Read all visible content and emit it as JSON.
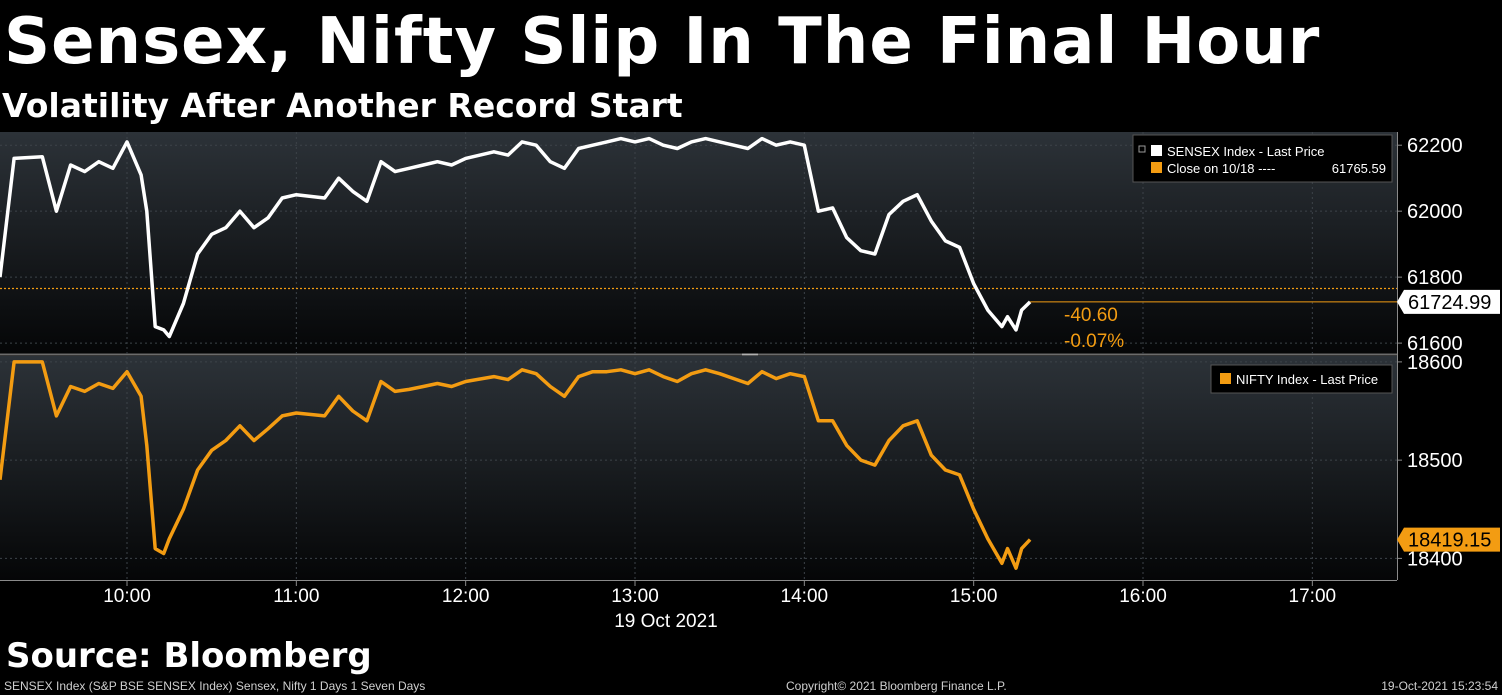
{
  "header": {
    "title": "Sensex, Nifty Slip In The Final Hour",
    "subtitle": "Volatility After Another Record Start"
  },
  "source_label": "Source: Bloomberg",
  "footer": {
    "left": "SENSEX Index (S&P BSE SENSEX Index) Sensex, Nifty 1 Days 1 Seven Days",
    "center": "Copyright© 2021 Bloomberg Finance L.P.",
    "right": "19-Oct-2021 15:23:54"
  },
  "colors": {
    "background": "#000000",
    "sensex_line": "#ffffff",
    "nifty_line": "#f39c12",
    "prev_close_line": "#f39c12"
  },
  "chart_data": {
    "type": "line",
    "date_label": "19 Oct 2021",
    "x_tick_labels": [
      "10:00",
      "11:00",
      "12:00",
      "13:00",
      "14:00",
      "15:00",
      "16:00",
      "17:00"
    ],
    "xlim": [
      "09:15",
      "17:30"
    ],
    "panels": [
      {
        "id": "sensex",
        "legend": [
          "SENSEX Index - Last Price",
          "Close on 10/18 ----"
        ],
        "legend_value": "61765.59",
        "ylim": [
          61570,
          62240
        ],
        "y_ticks": [
          61600,
          61800,
          62000,
          62200
        ],
        "y_tick_labels": [
          "61600",
          "61800",
          "62000",
          "62200"
        ],
        "last_value_label": "61724.99",
        "prev_close": 61765.59,
        "change_label": "-40.60",
        "change_pct_label": "-0.07%",
        "series": [
          {
            "name": "SENSEX Index - Last Price",
            "x": [
              "09:15",
              "09:20",
              "09:30",
              "09:35",
              "09:40",
              "09:45",
              "09:50",
              "09:55",
              "10:00",
              "10:05",
              "10:07",
              "10:10",
              "10:13",
              "10:15",
              "10:20",
              "10:25",
              "10:30",
              "10:35",
              "10:40",
              "10:45",
              "10:50",
              "10:55",
              "11:00",
              "11:10",
              "11:15",
              "11:20",
              "11:25",
              "11:30",
              "11:35",
              "11:40",
              "11:45",
              "11:50",
              "11:55",
              "12:00",
              "12:10",
              "12:15",
              "12:20",
              "12:25",
              "12:30",
              "12:35",
              "12:40",
              "12:45",
              "12:50",
              "12:55",
              "13:00",
              "13:05",
              "13:10",
              "13:15",
              "13:20",
              "13:25",
              "13:30",
              "13:35",
              "13:40",
              "13:45",
              "13:50",
              "13:55",
              "14:00",
              "14:05",
              "14:10",
              "14:15",
              "14:20",
              "14:25",
              "14:30",
              "14:35",
              "14:40",
              "14:45",
              "14:50",
              "14:55",
              "15:00",
              "15:05",
              "15:10",
              "15:12",
              "15:15",
              "15:17",
              "15:20"
            ],
            "values": [
              61800,
              62160,
              62165,
              62000,
              62140,
              62120,
              62150,
              62130,
              62210,
              62110,
              62000,
              61650,
              61640,
              61620,
              61720,
              61870,
              61930,
              61950,
              62000,
              61950,
              61980,
              62040,
              62050,
              62040,
              62100,
              62060,
              62030,
              62150,
              62120,
              62130,
              62140,
              62150,
              62140,
              62160,
              62180,
              62170,
              62210,
              62200,
              62150,
              62130,
              62190,
              62200,
              62210,
              62220,
              62210,
              62220,
              62200,
              62190,
              62210,
              62220,
              62210,
              62200,
              62190,
              62220,
              62200,
              62210,
              62200,
              62000,
              62010,
              61920,
              61880,
              61870,
              61990,
              62030,
              62050,
              61970,
              61910,
              61890,
              61780,
              61700,
              61650,
              61680,
              61640,
              61700,
              61724.99
            ]
          }
        ]
      },
      {
        "id": "nifty",
        "legend": [
          "NIFTY Index - Last Price"
        ],
        "ylim": [
          18378,
          18606
        ],
        "y_ticks": [
          18400,
          18500,
          18600
        ],
        "y_tick_labels": [
          "18400",
          "18500",
          "18600"
        ],
        "last_value_label": "18419.15",
        "series": [
          {
            "name": "NIFTY Index - Last Price",
            "x": [
              "09:15",
              "09:20",
              "09:30",
              "09:35",
              "09:40",
              "09:45",
              "09:50",
              "09:55",
              "10:00",
              "10:05",
              "10:07",
              "10:10",
              "10:13",
              "10:15",
              "10:20",
              "10:25",
              "10:30",
              "10:35",
              "10:40",
              "10:45",
              "10:50",
              "10:55",
              "11:00",
              "11:10",
              "11:15",
              "11:20",
              "11:25",
              "11:30",
              "11:35",
              "11:40",
              "11:45",
              "11:50",
              "11:55",
              "12:00",
              "12:10",
              "12:15",
              "12:20",
              "12:25",
              "12:30",
              "12:35",
              "12:40",
              "12:45",
              "12:50",
              "12:55",
              "13:00",
              "13:05",
              "13:10",
              "13:15",
              "13:20",
              "13:25",
              "13:30",
              "13:35",
              "13:40",
              "13:45",
              "13:50",
              "13:55",
              "14:00",
              "14:05",
              "14:10",
              "14:15",
              "14:20",
              "14:25",
              "14:30",
              "14:35",
              "14:40",
              "14:45",
              "14:50",
              "14:55",
              "15:00",
              "15:05",
              "15:10",
              "15:12",
              "15:15",
              "15:17",
              "15:20"
            ],
            "values": [
              18480,
              18600,
              18600,
              18545,
              18575,
              18570,
              18578,
              18573,
              18590,
              18565,
              18515,
              18410,
              18405,
              18420,
              18450,
              18490,
              18510,
              18520,
              18535,
              18520,
              18532,
              18545,
              18548,
              18545,
              18565,
              18550,
              18540,
              18580,
              18570,
              18572,
              18575,
              18578,
              18575,
              18580,
              18585,
              18582,
              18592,
              18588,
              18575,
              18565,
              18585,
              18590,
              18590,
              18592,
              18588,
              18592,
              18585,
              18580,
              18588,
              18592,
              18588,
              18583,
              18578,
              18590,
              18583,
              18588,
              18585,
              18540,
              18540,
              18515,
              18500,
              18495,
              18520,
              18535,
              18540,
              18505,
              18490,
              18485,
              18450,
              18420,
              18395,
              18410,
              18390,
              18410,
              18419.15
            ]
          }
        ]
      }
    ]
  }
}
